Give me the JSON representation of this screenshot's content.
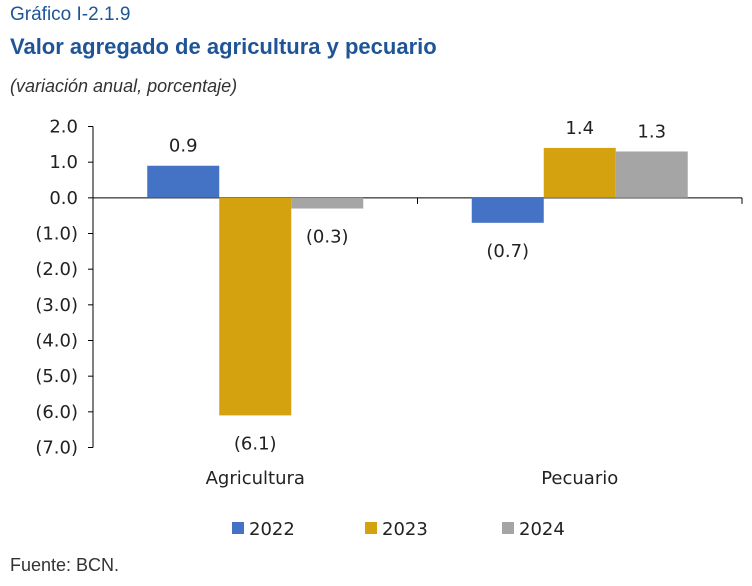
{
  "header": {
    "kicker": "Gráfico I-2.1.9",
    "title": "Valor agregado de agricultura y pecuario",
    "subtitle": "(variación anual, porcentaje)"
  },
  "footer": {
    "source": "Fuente: BCN."
  },
  "colors": {
    "s2022": "#4472c4",
    "s2023": "#d4a20e",
    "s2024": "#a5a5a5",
    "title": "#1f5597"
  },
  "chart_data": {
    "type": "bar",
    "categories": [
      "Agricultura",
      "Pecuario"
    ],
    "series": [
      {
        "name": "2022",
        "values": [
          0.9,
          -0.7
        ],
        "labels": [
          "0.9",
          "(0.7)"
        ]
      },
      {
        "name": "2023",
        "values": [
          -6.1,
          1.4
        ],
        "labels": [
          "(6.1)",
          "1.4"
        ]
      },
      {
        "name": "2024",
        "values": [
          -0.3,
          1.3
        ],
        "labels": [
          "(0.3)",
          "1.3"
        ]
      }
    ],
    "ylim": [
      -7.0,
      2.0
    ],
    "yticks": [
      "2.0",
      "1.0",
      "0.0",
      "(1.0)",
      "(2.0)",
      "(3.0)",
      "(4.0)",
      "(5.0)",
      "(6.0)",
      "(7.0)"
    ],
    "ytick_values": [
      2,
      1,
      0,
      -1,
      -2,
      -3,
      -4,
      -5,
      -6,
      -7
    ],
    "legend_position": "bottom",
    "grid": false
  }
}
